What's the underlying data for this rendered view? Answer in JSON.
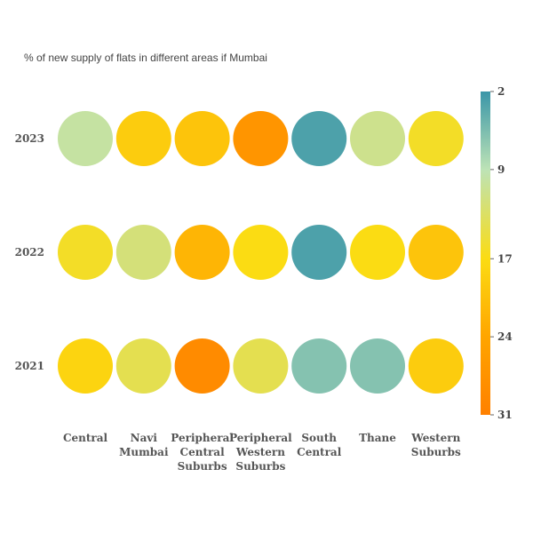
{
  "chart_data": {
    "type": "heatmap",
    "title": "% of new supply of flats in different areas if Mumbai",
    "x_categories": [
      "Central",
      "Navi Mumbai",
      "Peripheral Central Suburbs",
      "Peripheral Western Suburbs",
      "South Central",
      "Thane",
      "Western Suburbs"
    ],
    "x_tick_labels": [
      [
        "Central"
      ],
      [
        "Navi",
        "Mumbai"
      ],
      [
        "Peripheral",
        "Central",
        "Suburbs"
      ],
      [
        "Peripheral",
        "Western",
        "Suburbs"
      ],
      [
        "South",
        "Central"
      ],
      [
        "Thane"
      ],
      [
        "Western",
        "Suburbs"
      ]
    ],
    "y_categories": [
      "2023",
      "2022",
      "2021"
    ],
    "values": [
      [
        10,
        19,
        20,
        27,
        3,
        11,
        16
      ],
      [
        16,
        12,
        22,
        17,
        3,
        17,
        20
      ],
      [
        18,
        14,
        29,
        14,
        6,
        6,
        19
      ]
    ],
    "colorscale": {
      "min": 2,
      "max": 31,
      "ticks": [
        2,
        9,
        17,
        24,
        31
      ],
      "stops": [
        {
          "v": 2,
          "color": "#3a96a8"
        },
        {
          "v": 9,
          "color": "#bde3b6"
        },
        {
          "v": 17,
          "color": "#fbdc13"
        },
        {
          "v": 24,
          "color": "#ffa500"
        },
        {
          "v": 31,
          "color": "#ff8000"
        }
      ]
    },
    "legend": "right",
    "grid": false
  }
}
